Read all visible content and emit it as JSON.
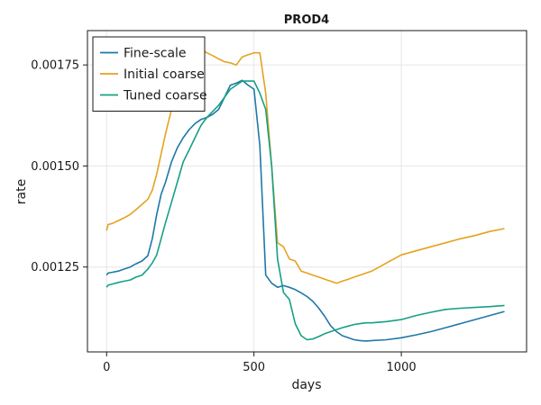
{
  "chart_data": {
    "type": "line",
    "title": "PROD4",
    "xlabel": "days",
    "ylabel": "rate",
    "xlim": [
      -65,
      1425
    ],
    "ylim": [
      0.00104,
      0.001835
    ],
    "xticks": [
      0,
      500,
      1000
    ],
    "xtick_labels": [
      "0",
      "500",
      "1000"
    ],
    "yticks": [
      0.00125,
      0.0015,
      0.00175
    ],
    "ytick_labels": [
      "0.00125",
      "0.00150",
      "0.00175"
    ],
    "grid": true,
    "legend_position": "top-left",
    "series": [
      {
        "name": "Fine-scale",
        "color": "#1f78a8",
        "x": [
          0,
          5,
          20,
          40,
          60,
          80,
          100,
          120,
          140,
          155,
          170,
          185,
          200,
          220,
          240,
          260,
          280,
          300,
          320,
          340,
          360,
          380,
          400,
          420,
          440,
          460,
          480,
          500,
          520,
          540,
          560,
          580,
          600,
          620,
          640,
          660,
          680,
          700,
          720,
          740,
          760,
          780,
          800,
          820,
          840,
          860,
          880,
          900,
          950,
          1000,
          1050,
          1100,
          1150,
          1200,
          1250,
          1300,
          1350
        ],
        "y": [
          0.00123,
          0.001235,
          0.001237,
          0.00124,
          0.001245,
          0.00125,
          0.001258,
          0.001265,
          0.001278,
          0.00132,
          0.00138,
          0.00143,
          0.00146,
          0.00151,
          0.001545,
          0.00157,
          0.00159,
          0.001605,
          0.001615,
          0.00162,
          0.001628,
          0.00164,
          0.00167,
          0.0017,
          0.001705,
          0.001712,
          0.0017,
          0.00169,
          0.00155,
          0.00123,
          0.00121,
          0.0012,
          0.001204,
          0.0012,
          0.001194,
          0.001186,
          0.001177,
          0.001165,
          0.001148,
          0.001128,
          0.001105,
          0.00109,
          0.00108,
          0.001075,
          0.00107,
          0.001068,
          0.001067,
          0.001068,
          0.00107,
          0.001075,
          0.001082,
          0.00109,
          0.0011,
          0.00111,
          0.00112,
          0.00113,
          0.00114
        ]
      },
      {
        "name": "Initial coarse",
        "color": "#e3a31f",
        "x": [
          0,
          5,
          20,
          40,
          60,
          80,
          100,
          120,
          140,
          155,
          170,
          185,
          200,
          220,
          240,
          260,
          280,
          300,
          320,
          340,
          360,
          380,
          400,
          420,
          440,
          460,
          480,
          500,
          520,
          540,
          560,
          580,
          600,
          620,
          640,
          660,
          680,
          700,
          720,
          740,
          760,
          780,
          800,
          820,
          840,
          860,
          880,
          900,
          950,
          1000,
          1050,
          1100,
          1150,
          1200,
          1250,
          1300,
          1350
        ],
        "y": [
          0.00134,
          0.001355,
          0.001358,
          0.001365,
          0.001372,
          0.00138,
          0.001392,
          0.001405,
          0.001418,
          0.00144,
          0.00148,
          0.00153,
          0.00158,
          0.00164,
          0.00169,
          0.00173,
          0.00177,
          0.0018,
          0.00179,
          0.00178,
          0.001773,
          0.001765,
          0.001758,
          0.001755,
          0.00175,
          0.00177,
          0.001775,
          0.00178,
          0.00178,
          0.00168,
          0.0015,
          0.00131,
          0.0013,
          0.00127,
          0.001265,
          0.00124,
          0.001235,
          0.00123,
          0.001225,
          0.00122,
          0.001215,
          0.00121,
          0.001215,
          0.00122,
          0.001225,
          0.00123,
          0.001235,
          0.00124,
          0.00126,
          0.00128,
          0.00129,
          0.0013,
          0.00131,
          0.00132,
          0.001328,
          0.001338,
          0.001345
        ]
      },
      {
        "name": "Tuned coarse",
        "color": "#16a085",
        "x": [
          0,
          5,
          20,
          40,
          60,
          80,
          100,
          120,
          140,
          155,
          170,
          185,
          200,
          220,
          240,
          260,
          280,
          300,
          320,
          340,
          360,
          380,
          400,
          420,
          440,
          460,
          480,
          500,
          520,
          540,
          560,
          580,
          600,
          620,
          640,
          660,
          680,
          700,
          720,
          740,
          760,
          780,
          800,
          820,
          840,
          860,
          880,
          900,
          950,
          1000,
          1050,
          1100,
          1150,
          1200,
          1250,
          1300,
          1350
        ],
        "y": [
          0.0012,
          0.001205,
          0.001208,
          0.001212,
          0.001215,
          0.001218,
          0.001225,
          0.00123,
          0.001245,
          0.00126,
          0.00128,
          0.00132,
          0.00136,
          0.00141,
          0.00146,
          0.00151,
          0.00154,
          0.00157,
          0.0016,
          0.00162,
          0.001635,
          0.00165,
          0.00167,
          0.00169,
          0.0017,
          0.00171,
          0.00171,
          0.00171,
          0.00168,
          0.00164,
          0.0015,
          0.00127,
          0.001187,
          0.00117,
          0.00111,
          0.00108,
          0.00107,
          0.001072,
          0.001078,
          0.001085,
          0.00109,
          0.001095,
          0.0011,
          0.001104,
          0.001108,
          0.00111,
          0.001112,
          0.001112,
          0.001115,
          0.00112,
          0.00113,
          0.001138,
          0.001145,
          0.001148,
          0.00115,
          0.001152,
          0.001155
        ]
      }
    ]
  }
}
